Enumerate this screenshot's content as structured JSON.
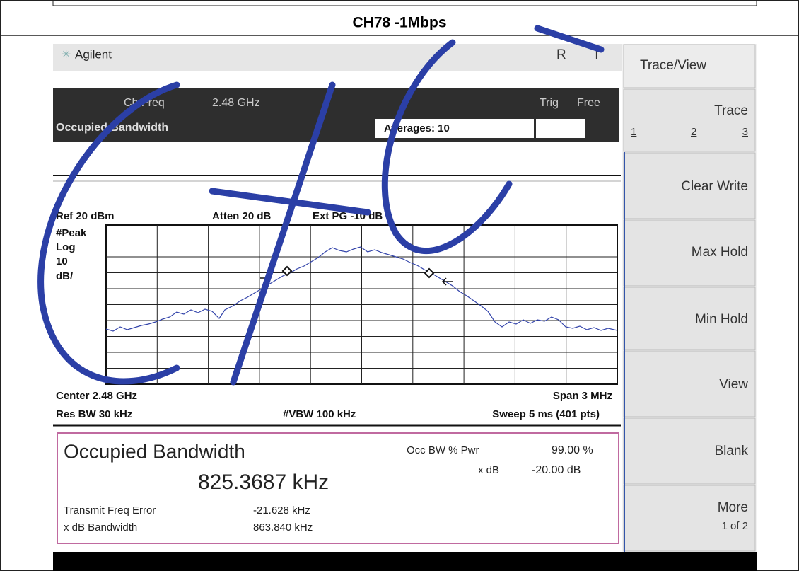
{
  "title": "CH78 -1Mbps",
  "header": {
    "brand": "Agilent",
    "status_r": "R",
    "status_t": "T"
  },
  "measurement_bar": {
    "ch_freq_label": "Ch Freq",
    "ch_freq": "2.48 GHz",
    "trig_label": "Trig",
    "trig": "Free",
    "name": "Occupied Bandwidth",
    "averages": "Averages: 10"
  },
  "plot": {
    "ref": "Ref 20 dBm",
    "atten": "Atten 20 dB",
    "ext_pg": "Ext PG -10 dB",
    "scale": [
      "#Peak",
      "Log",
      "10",
      "dB/"
    ],
    "center": "Center 2.48 GHz",
    "span": "Span 3 MHz",
    "res_bw": "Res BW 30 kHz",
    "vbw": "#VBW 100 kHz",
    "sweep": "Sweep 5 ms (401 pts)"
  },
  "results": {
    "title": "Occupied Bandwidth",
    "value": "825.3687 kHz",
    "occ_bw_label": "Occ BW % Pwr",
    "occ_bw": "99.00 %",
    "xdb_label": "x dB",
    "xdb": "-20.00 dB",
    "freq_error_label": "Transmit Freq Error",
    "freq_error": "-21.628 kHz",
    "xdb_bw_label": "x dB Bandwidth",
    "xdb_bw": "863.840 kHz"
  },
  "softkeys": {
    "menu": "Trace/View",
    "trace": "Trace",
    "trace_numbers": [
      "1",
      "2",
      "3"
    ],
    "clear_write": "Clear Write",
    "max_hold": "Max Hold",
    "min_hold": "Min Hold",
    "view": "View",
    "blank": "Blank",
    "more": "More",
    "more_page": "1 of 2"
  }
}
